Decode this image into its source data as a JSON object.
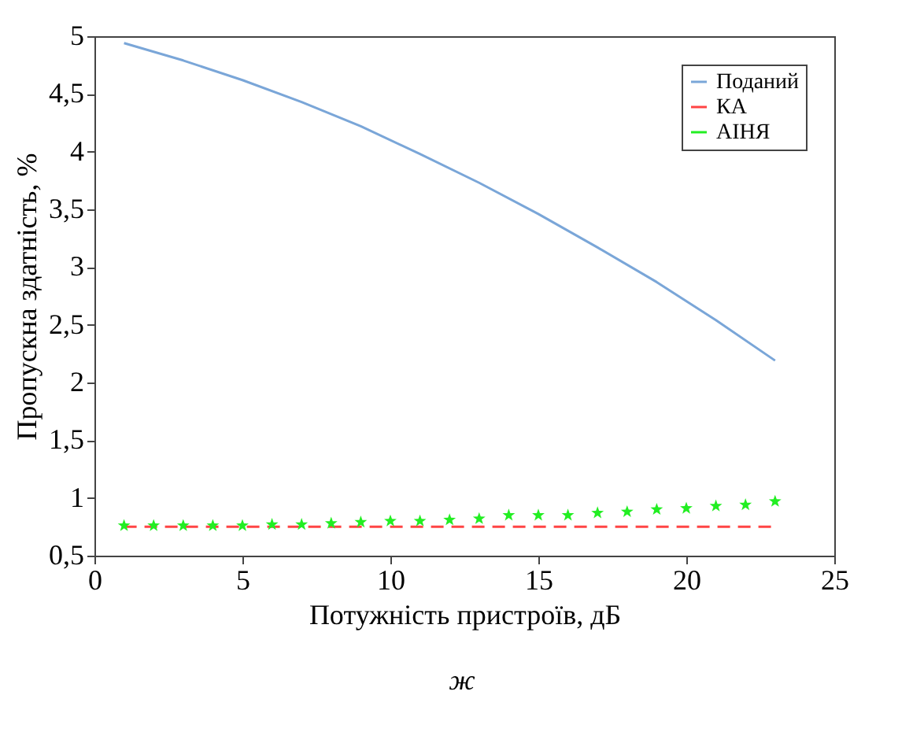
{
  "chart_data": {
    "type": "line",
    "xlabel": "Потужність пристроїв, дБ",
    "ylabel": "Пропускна здатність, %",
    "xlim": [
      0,
      25
    ],
    "xticks": [
      0,
      5,
      10,
      15,
      20,
      25
    ],
    "ylim": [
      0.5,
      5
    ],
    "yticks": [
      {
        "value": 0.5,
        "label": "0,5"
      },
      1,
      {
        "value": 1.5,
        "label": "1,5"
      },
      2,
      {
        "value": 2.5,
        "label": "2,5"
      },
      3,
      {
        "value": 3.5,
        "label": "3,5"
      },
      4,
      {
        "value": 4.5,
        "label": "4,5"
      },
      5
    ],
    "legend": "top right",
    "grid": false,
    "annotations": [
      "ж"
    ],
    "series": [
      {
        "name": "Поданий",
        "type": "line",
        "color": "#7aa6d8",
        "line_style": "solid",
        "x": [
          1,
          3,
          5,
          7,
          9,
          11,
          13,
          15,
          17,
          19,
          21,
          23
        ],
        "values": [
          4.94,
          4.79,
          4.62,
          4.43,
          4.22,
          3.98,
          3.73,
          3.46,
          3.17,
          2.87,
          2.54,
          2.19
        ]
      },
      {
        "name": "КА",
        "type": "line",
        "color": "#ff4444",
        "line_style": "dashed",
        "x": [
          1,
          23
        ],
        "values": [
          0.75,
          0.75
        ]
      },
      {
        "name": "АІНЯ",
        "type": "scatter",
        "color": "#22ee22",
        "marker": "star",
        "x": [
          1,
          2,
          3,
          4,
          5,
          6,
          7,
          8,
          9,
          10,
          11,
          12,
          13,
          14,
          15,
          16,
          17,
          18,
          19,
          20,
          21,
          22,
          23
        ],
        "values": [
          0.76,
          0.76,
          0.76,
          0.76,
          0.76,
          0.77,
          0.77,
          0.78,
          0.79,
          0.8,
          0.8,
          0.81,
          0.82,
          0.85,
          0.85,
          0.85,
          0.87,
          0.88,
          0.9,
          0.91,
          0.93,
          0.94,
          0.97
        ]
      }
    ]
  }
}
